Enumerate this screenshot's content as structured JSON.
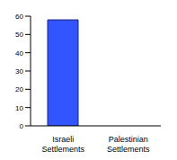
{
  "chart_data": {
    "type": "bar",
    "categories": [
      "Israeli Settlements",
      "Palestinian Settlements"
    ],
    "values": [
      58,
      0
    ],
    "color": "#3355ff",
    "ylim": [
      0,
      60
    ],
    "yticks": [
      0,
      10,
      20,
      30,
      40,
      50,
      60
    ],
    "grid": false
  }
}
